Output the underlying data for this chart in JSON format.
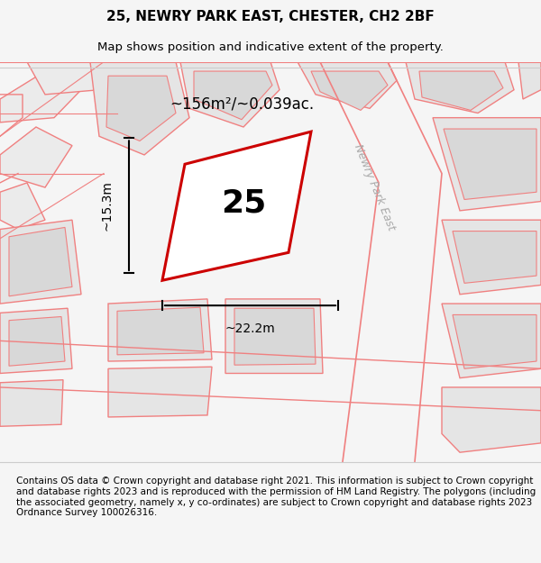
{
  "title": "25, NEWRY PARK EAST, CHESTER, CH2 2BF",
  "subtitle": "Map shows position and indicative extent of the property.",
  "footer": "Contains OS data © Crown copyright and database right 2021. This information is subject to Crown copyright and database rights 2023 and is reproduced with the permission of HM Land Registry. The polygons (including the associated geometry, namely x, y co-ordinates) are subject to Crown copyright and database rights 2023 Ordnance Survey 100026316.",
  "bg_color": "#f5f5f5",
  "map_bg": "#ffffff",
  "area_text": "~156m²/~0.039ac.",
  "width_text": "~22.2m",
  "height_text": "~15.3m",
  "number_text": "25",
  "road_label": "Newry Park East",
  "title_fontsize": 11,
  "subtitle_fontsize": 9.5,
  "footer_fontsize": 7.5
}
